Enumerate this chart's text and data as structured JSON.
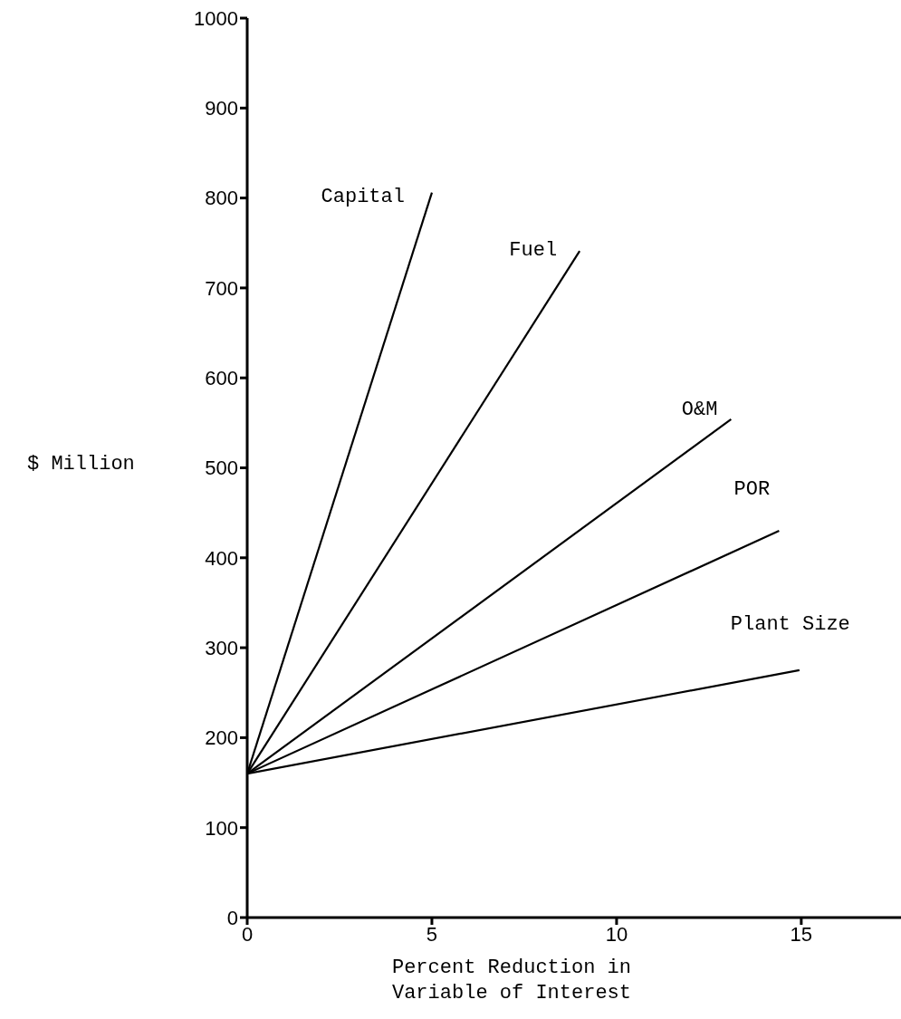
{
  "chart_data": {
    "type": "line",
    "xlabel": "Percent Reduction in Variable of Interest",
    "ylabel": "$ Million",
    "xlim": [
      0,
      17.7
    ],
    "xticks": [
      0,
      5,
      10,
      15
    ],
    "ylim": [
      0,
      1000
    ],
    "yticks": [
      0,
      100,
      200,
      300,
      400,
      500,
      600,
      700,
      800,
      900,
      1000
    ],
    "grid": false,
    "legend": false,
    "marker": "none",
    "line_style": "solid",
    "series": [
      {
        "name": "Capital",
        "color": "#000000",
        "x": [
          0,
          5.0
        ],
        "values": [
          160,
          806
        ]
      },
      {
        "name": "Fuel",
        "color": "#000000",
        "x": [
          0,
          9.0
        ],
        "values": [
          160,
          741
        ]
      },
      {
        "name": "O&M",
        "color": "#000000",
        "x": [
          0,
          13.1
        ],
        "values": [
          160,
          554
        ]
      },
      {
        "name": "POR",
        "color": "#000000",
        "x": [
          0,
          14.4
        ],
        "values": [
          160,
          430
        ]
      },
      {
        "name": "Plant Size",
        "color": "#000000",
        "x": [
          0,
          14.95
        ],
        "values": [
          160,
          275
        ]
      }
    ]
  }
}
